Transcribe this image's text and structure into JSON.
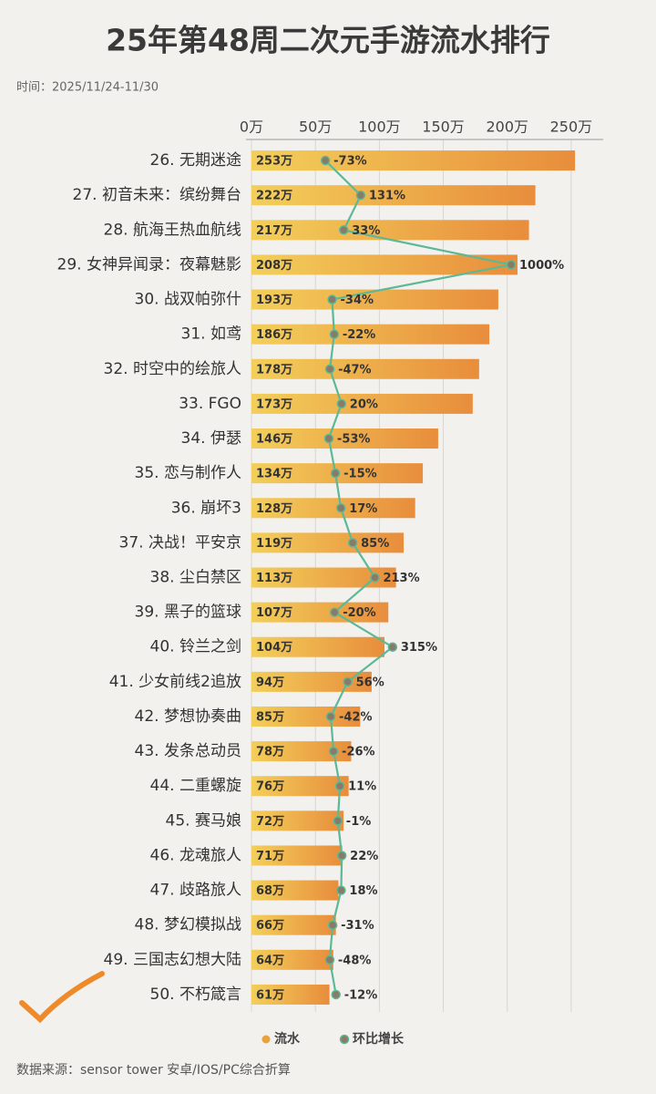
{
  "chart_data": {
    "type": "bar",
    "orientation": "horizontal",
    "title": "25年第48周二次元手游流水排行",
    "subtitle": "时间：2025/11/24-11/30",
    "source": "数据来源：sensor tower 安卓/IOS/PC综合折算",
    "categories": [
      "26. 无期迷途",
      "27. 初音未来：缤纷舞台",
      "28. 航海王热血航线",
      "29. 女神异闻录：夜幕魅影",
      "30. 战双帕弥什",
      "31. 如鸢",
      "32. 时空中的绘旅人",
      "33. FGO",
      "34. 伊瑟",
      "35. 恋与制作人",
      "36. 崩坏3",
      "37. 决战！平安京",
      "38. 尘白禁区",
      "39. 黑子的篮球",
      "40. 铃兰之剑",
      "41. 少女前线2追放",
      "42. 梦想协奏曲",
      "43. 发条总动员",
      "44. 二重螺旋",
      "45. 赛马娘",
      "46. 龙魂旅人",
      "47. 歧路旅人",
      "48. 梦幻模拟战",
      "49. 三国志幻想大陆",
      "50. 不朽箴言"
    ],
    "series": [
      {
        "name": "流水",
        "type": "bar",
        "color": "#e9a23b",
        "values": [
          253,
          222,
          217,
          208,
          193,
          186,
          178,
          173,
          146,
          134,
          128,
          119,
          113,
          107,
          104,
          94,
          85,
          78,
          76,
          72,
          71,
          68,
          66,
          64,
          61
        ],
        "value_labels": [
          "253万",
          "222万",
          "217万",
          "208万",
          "193万",
          "186万",
          "178万",
          "173万",
          "146万",
          "134万",
          "128万",
          "119万",
          "113万",
          "107万",
          "104万",
          "94万",
          "85万",
          "78万",
          "76万",
          "72万",
          "71万",
          "68万",
          "66万",
          "64万",
          "61万"
        ]
      },
      {
        "name": "环比增长",
        "type": "line",
        "axis": "y2",
        "color": "#5cb896",
        "values": [
          -73,
          131,
          33,
          1000,
          -34,
          -22,
          -47,
          20,
          -53,
          -15,
          17,
          85,
          213,
          -20,
          315,
          56,
          -42,
          -26,
          11,
          -1,
          22,
          18,
          -31,
          -48,
          -12
        ],
        "value_labels": [
          "-73%",
          "131%",
          "33%",
          "1000%",
          "-34%",
          "-22%",
          "-47%",
          "20%",
          "-53%",
          "-15%",
          "17%",
          "85%",
          "213%",
          "-20%",
          "315%",
          "56%",
          "-42%",
          "-26%",
          "11%",
          "-1%",
          "22%",
          "18%",
          "-31%",
          "-48%",
          "-12%"
        ]
      }
    ],
    "ylim": [
      0,
      275
    ],
    "yticks": [
      {
        "value": 0,
        "label": "0万"
      },
      {
        "value": 50,
        "label": "50万"
      },
      {
        "value": 100,
        "label": "100万"
      },
      {
        "value": 150,
        "label": "150万"
      },
      {
        "value": 200,
        "label": "200万"
      },
      {
        "value": 250,
        "label": "250万"
      }
    ],
    "y2lim": [
      -500,
      1500
    ],
    "grid": true
  }
}
